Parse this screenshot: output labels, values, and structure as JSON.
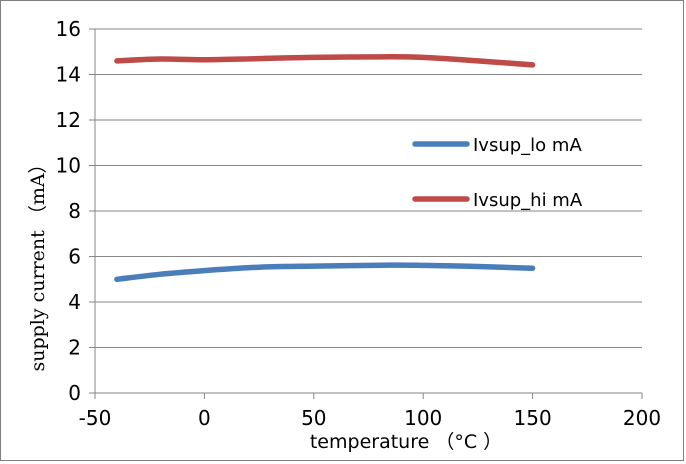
{
  "chart_data": {
    "type": "line",
    "xlabel": "temperature （°C ）",
    "ylabel": "supply current （mA）",
    "xlim": [
      -50,
      200
    ],
    "ylim": [
      0,
      16
    ],
    "xticks": [
      -50,
      0,
      50,
      100,
      150,
      200
    ],
    "yticks": [
      0,
      2,
      4,
      6,
      8,
      10,
      12,
      14,
      16
    ],
    "grid": "horizontal",
    "legend_position": "right",
    "series": [
      {
        "name": "Ivsup_lo mA",
        "color": "#4a7ebb",
        "x": [
          -40,
          -20,
          0,
          25,
          50,
          85,
          100,
          125,
          150
        ],
        "y": [
          5.0,
          5.22,
          5.38,
          5.53,
          5.58,
          5.62,
          5.61,
          5.56,
          5.48
        ]
      },
      {
        "name": "Ivsup_hi mA",
        "color": "#be4b48",
        "x": [
          -40,
          -20,
          0,
          25,
          50,
          85,
          100,
          125,
          150
        ],
        "y": [
          14.6,
          14.68,
          14.65,
          14.7,
          14.75,
          14.78,
          14.75,
          14.6,
          14.42
        ]
      }
    ]
  }
}
